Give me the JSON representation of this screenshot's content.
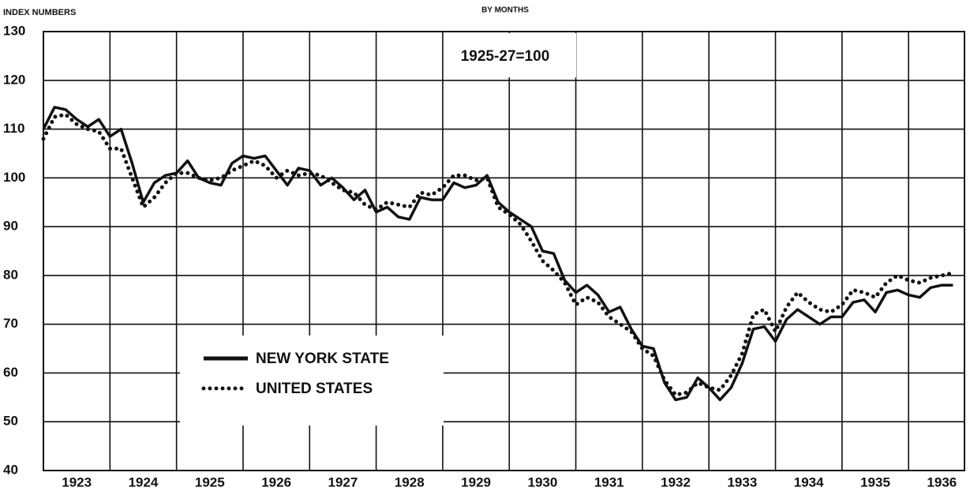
{
  "chart_data": {
    "type": "line",
    "title": "BY MONTHS",
    "y_label": "INDEX NUMBERS",
    "annotation": "1925-27=100",
    "xlim": [
      1923,
      1936.84
    ],
    "xticks": [
      {
        "value": 1923.5,
        "label": "1923"
      },
      {
        "value": 1924.5,
        "label": "1924"
      },
      {
        "value": 1925.5,
        "label": "1925"
      },
      {
        "value": 1926.5,
        "label": "1926"
      },
      {
        "value": 1927.5,
        "label": "1927"
      },
      {
        "value": 1928.5,
        "label": "1928"
      },
      {
        "value": 1929.5,
        "label": "1929"
      },
      {
        "value": 1930.5,
        "label": "1930"
      },
      {
        "value": 1931.5,
        "label": "1931"
      },
      {
        "value": 1932.5,
        "label": "1932"
      },
      {
        "value": 1933.5,
        "label": "1933"
      },
      {
        "value": 1934.5,
        "label": "1934"
      },
      {
        "value": 1935.5,
        "label": "1935"
      },
      {
        "value": 1936.5,
        "label": "1936"
      }
    ],
    "xgrid": [
      1924,
      1925,
      1926,
      1927,
      1928,
      1929,
      1930,
      1931,
      1932,
      1933,
      1934,
      1935,
      1936
    ],
    "ylim": [
      40,
      130
    ],
    "yticks": [
      40,
      50,
      60,
      70,
      80,
      90,
      100,
      110,
      120,
      130
    ],
    "grid": true,
    "legend": "lower-left",
    "x": [
      1923.0,
      1923.167,
      1923.333,
      1923.5,
      1923.667,
      1923.833,
      1924.0,
      1924.167,
      1924.333,
      1924.5,
      1924.667,
      1924.833,
      1925.0,
      1925.167,
      1925.333,
      1925.5,
      1925.667,
      1925.833,
      1926.0,
      1926.167,
      1926.333,
      1926.5,
      1926.667,
      1926.833,
      1927.0,
      1927.167,
      1927.333,
      1927.5,
      1927.667,
      1927.833,
      1928.0,
      1928.167,
      1928.333,
      1928.5,
      1928.667,
      1928.833,
      1929.0,
      1929.167,
      1929.333,
      1929.5,
      1929.667,
      1929.833,
      1930.0,
      1930.167,
      1930.333,
      1930.5,
      1930.667,
      1930.833,
      1931.0,
      1931.167,
      1931.333,
      1931.5,
      1931.667,
      1931.833,
      1932.0,
      1932.167,
      1932.333,
      1932.5,
      1932.667,
      1932.833,
      1933.0,
      1933.167,
      1933.333,
      1933.5,
      1933.667,
      1933.833,
      1934.0,
      1934.167,
      1934.333,
      1934.5,
      1934.667,
      1934.833,
      1935.0,
      1935.167,
      1935.333,
      1935.5,
      1935.667,
      1935.833,
      1936.0,
      1936.167,
      1936.333,
      1936.5,
      1936.667
    ],
    "series": [
      {
        "name": "NEW YORK STATE",
        "color": "#111111",
        "style": "solid",
        "values": [
          110,
          114.5,
          114,
          112,
          110.5,
          112,
          108.5,
          110,
          103,
          95,
          99,
          100.5,
          101,
          103.5,
          100,
          99,
          98.5,
          103,
          104.5,
          104,
          104.5,
          101.5,
          98.5,
          102,
          101.5,
          98.5,
          100,
          98,
          95.5,
          97.5,
          93,
          94,
          92,
          91.5,
          96,
          95.5,
          95.5,
          99,
          98,
          98.5,
          100.5,
          95,
          93,
          91.5,
          90,
          85,
          84.5,
          79,
          76.5,
          78,
          76,
          72.5,
          73.5,
          69,
          65.5,
          65,
          58,
          54.5,
          55,
          59,
          57,
          54.5,
          57,
          62,
          69,
          69.5,
          66.5,
          71,
          73,
          71.5,
          70,
          71.5,
          71.5,
          74.5,
          75,
          72.5,
          76.5,
          77,
          76,
          75.5,
          77.5,
          78,
          78
        ]
      },
      {
        "name": "UNITED STATES",
        "color": "#111111",
        "style": "dotted",
        "values": [
          108,
          112.5,
          113,
          111,
          110,
          109.5,
          106,
          106,
          100,
          94,
          96,
          99,
          101,
          101,
          100,
          99.5,
          100,
          101.5,
          102.5,
          103.5,
          102.5,
          100,
          101.5,
          100.5,
          101,
          100.5,
          99,
          97.5,
          97,
          94.5,
          93.5,
          95,
          94.5,
          94,
          97,
          96.5,
          98,
          100.5,
          100.5,
          99.5,
          100,
          94,
          92.5,
          90.5,
          87,
          83,
          81,
          78.5,
          74,
          75.5,
          74.5,
          71.5,
          70,
          68.5,
          65,
          63.5,
          58.5,
          55.5,
          56,
          58,
          57,
          56.5,
          59.5,
          64,
          72,
          73,
          68.5,
          73.5,
          76.5,
          74.5,
          73,
          72.5,
          74,
          77,
          76.5,
          75.5,
          78.5,
          80,
          79,
          78.5,
          79.5,
          80,
          80.5
        ]
      }
    ]
  }
}
